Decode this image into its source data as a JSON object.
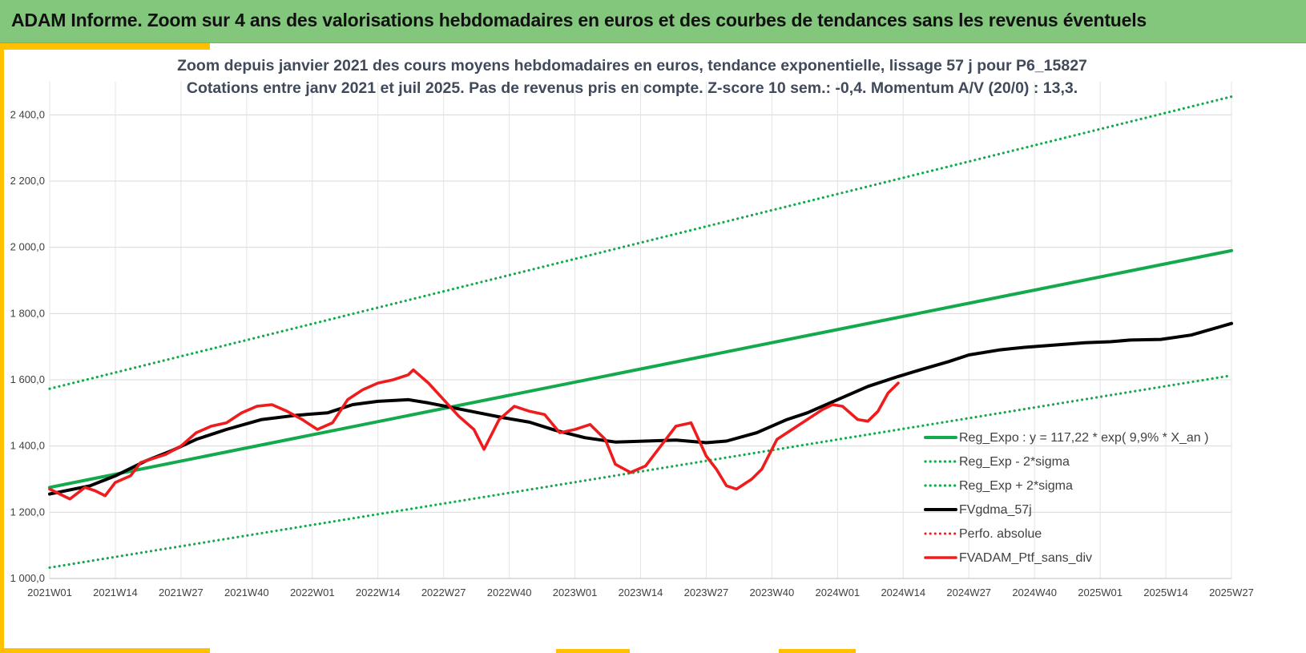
{
  "header": {
    "title": "ADAM Informe. Zoom sur 4 ans des valorisations hebdomadaires en euros et des courbes de tendances sans les revenus éventuels"
  },
  "colors": {
    "header_bg": "#82c77c",
    "accent": "#ffc000",
    "green": "#13aa4d",
    "black": "#000000",
    "red": "#ee1c1c"
  },
  "chart_data": {
    "type": "line",
    "title": "Zoom depuis janvier 2021 des cours moyens hebdomadaires  en euros, tendance exponentielle, lissage 57 j pour P6_15827",
    "subtitle": "Cotations entre janv 2021 et juil 2025. Pas de revenus pris en compte. Z-score 10 sem.: -0,4. Momentum A/V (20/0) : 13,3.",
    "xlabel": "",
    "ylabel": "",
    "ylim": [
      1000,
      2500
    ],
    "y_ticks": [
      "1 000,0",
      "1 200,0",
      "1 400,0",
      "1 600,0",
      "1 800,0",
      "2 000,0",
      "2 200,0",
      "2 400,0"
    ],
    "y_tick_values": [
      1000,
      1200,
      1400,
      1600,
      1800,
      2000,
      2200,
      2400
    ],
    "x_ticks": [
      "2021W01",
      "2021W14",
      "2021W27",
      "2021W40",
      "2022W01",
      "2022W14",
      "2022W27",
      "2022W40",
      "2023W01",
      "2023W14",
      "2023W27",
      "2023W40",
      "2024W01",
      "2024W14",
      "2024W27",
      "2024W40",
      "2025W01",
      "2025W14",
      "2025W27"
    ],
    "week_range": [
      0,
      234
    ],
    "grid": true,
    "legend_placement": "bottom-right",
    "series": [
      {
        "name": "Reg_Expo : y = 117,22 * exp( 9,9% *  X_an )",
        "style": "solid",
        "color": "#13aa4d",
        "points": [
          [
            0,
            1275
          ],
          [
            234,
            1990
          ]
        ]
      },
      {
        "name": "Reg_Exp - 2*sigma",
        "style": "dotted",
        "color": "#13aa4d",
        "points": [
          [
            0,
            1033
          ],
          [
            234,
            1613
          ]
        ]
      },
      {
        "name": "Reg_Exp + 2*sigma",
        "style": "dotted",
        "color": "#13aa4d",
        "points": [
          [
            0,
            1573
          ],
          [
            234,
            2455
          ]
        ]
      },
      {
        "name": "FVgdma_57j",
        "style": "solid",
        "color": "#000000",
        "points": [
          [
            0,
            1255
          ],
          [
            8,
            1280
          ],
          [
            13,
            1310
          ],
          [
            19,
            1355
          ],
          [
            24,
            1385
          ],
          [
            29,
            1420
          ],
          [
            35,
            1450
          ],
          [
            42,
            1480
          ],
          [
            49,
            1493
          ],
          [
            55,
            1500
          ],
          [
            60,
            1525
          ],
          [
            65,
            1535
          ],
          [
            71,
            1540
          ],
          [
            75,
            1530
          ],
          [
            80,
            1515
          ],
          [
            85,
            1500
          ],
          [
            90,
            1485
          ],
          [
            95,
            1472
          ],
          [
            100,
            1448
          ],
          [
            106,
            1425
          ],
          [
            112,
            1412
          ],
          [
            118,
            1415
          ],
          [
            124,
            1418
          ],
          [
            130,
            1410
          ],
          [
            134,
            1415
          ],
          [
            140,
            1440
          ],
          [
            146,
            1480
          ],
          [
            150,
            1500
          ],
          [
            156,
            1540
          ],
          [
            162,
            1580
          ],
          [
            168,
            1610
          ],
          [
            173,
            1633
          ],
          [
            178,
            1655
          ],
          [
            182,
            1675
          ],
          [
            188,
            1690
          ],
          [
            193,
            1698
          ],
          [
            199,
            1705
          ],
          [
            205,
            1712
          ],
          [
            210,
            1715
          ],
          [
            214,
            1720
          ],
          [
            220,
            1722
          ],
          [
            226,
            1735
          ],
          [
            234,
            1770
          ]
        ]
      },
      {
        "name": "Perfo. absolue",
        "style": "dotted",
        "color": "#ee1c1c",
        "points": []
      },
      {
        "name": "FVADAM_Ptf_sans_div",
        "style": "solid",
        "color": "#ee1c1c",
        "points": [
          [
            0,
            1270
          ],
          [
            2,
            1255
          ],
          [
            4,
            1240
          ],
          [
            7,
            1275
          ],
          [
            9,
            1265
          ],
          [
            11,
            1250
          ],
          [
            13,
            1290
          ],
          [
            16,
            1310
          ],
          [
            18,
            1350
          ],
          [
            20,
            1360
          ],
          [
            23,
            1375
          ],
          [
            26,
            1400
          ],
          [
            29,
            1440
          ],
          [
            32,
            1460
          ],
          [
            35,
            1470
          ],
          [
            38,
            1500
          ],
          [
            41,
            1520
          ],
          [
            44,
            1525
          ],
          [
            47,
            1505
          ],
          [
            50,
            1480
          ],
          [
            53,
            1450
          ],
          [
            56,
            1470
          ],
          [
            59,
            1540
          ],
          [
            62,
            1570
          ],
          [
            65,
            1590
          ],
          [
            68,
            1600
          ],
          [
            71,
            1615
          ],
          [
            72,
            1630
          ],
          [
            75,
            1590
          ],
          [
            78,
            1540
          ],
          [
            81,
            1490
          ],
          [
            84,
            1450
          ],
          [
            86,
            1390
          ],
          [
            89,
            1480
          ],
          [
            92,
            1520
          ],
          [
            95,
            1505
          ],
          [
            98,
            1495
          ],
          [
            101,
            1440
          ],
          [
            104,
            1450
          ],
          [
            107,
            1465
          ],
          [
            110,
            1420
          ],
          [
            112,
            1345
          ],
          [
            115,
            1320
          ],
          [
            118,
            1340
          ],
          [
            121,
            1400
          ],
          [
            124,
            1460
          ],
          [
            127,
            1470
          ],
          [
            130,
            1370
          ],
          [
            132,
            1330
          ],
          [
            134,
            1280
          ],
          [
            136,
            1270
          ],
          [
            139,
            1300
          ],
          [
            141,
            1330
          ],
          [
            144,
            1420
          ],
          [
            146,
            1440
          ],
          [
            150,
            1480
          ],
          [
            153,
            1510
          ],
          [
            155,
            1525
          ],
          [
            157,
            1520
          ],
          [
            160,
            1480
          ],
          [
            162,
            1475
          ],
          [
            164,
            1505
          ],
          [
            166,
            1560
          ],
          [
            168,
            1590
          ]
        ]
      }
    ]
  }
}
